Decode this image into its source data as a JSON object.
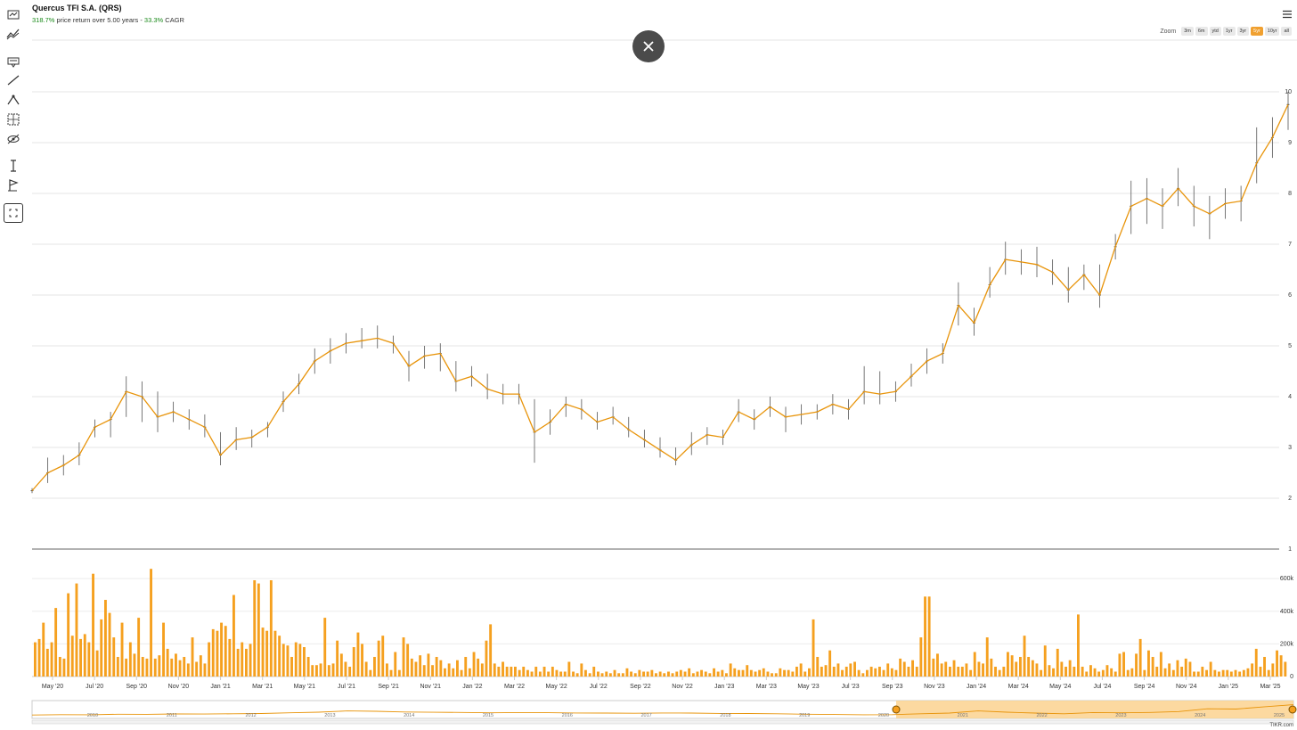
{
  "header": {
    "title": "Quercus TFI S.A. (QRS)",
    "return_pct": "318.7%",
    "return_text": " price return over 5.00 years - ",
    "cagr_pct": "33.3%",
    "cagr_text": " CAGR"
  },
  "toolbar": {
    "icons": [
      "indicators-icon",
      "compare-icon",
      "annotation-icon",
      "line-tool-icon",
      "path-tool-icon",
      "measure-tool-icon",
      "visibility-icon",
      "vertical-line-icon",
      "flag-icon",
      "fullscreen-icon"
    ]
  },
  "zoom": {
    "label": "Zoom",
    "options": [
      "3m",
      "6m",
      "ytd",
      "1yr",
      "3yr",
      "5yr",
      "10yr",
      "all"
    ],
    "selected": "5yr"
  },
  "colors": {
    "accent": "#f5a01f",
    "line": "#e8940a",
    "close_button": "#4b4b4b"
  },
  "chart_data": {
    "type": "line",
    "x_tick_labels": [
      "May '20",
      "Jul '20",
      "Sep '20",
      "Nov '20",
      "Jan '21",
      "Mar '21",
      "May '21",
      "Jul '21",
      "Sep '21",
      "Nov '21",
      "Jan '22",
      "Mar '22",
      "May '22",
      "Jul '22",
      "Sep '22",
      "Nov '22",
      "Jan '23",
      "Mar '23",
      "May '23",
      "Jul '23",
      "Sep '23",
      "Nov '23",
      "Jan '24",
      "Mar '24",
      "May '24",
      "Jul '24",
      "Sep '24",
      "Nov '24",
      "Jan '25",
      "Mar '25"
    ],
    "price": {
      "y_ticks": [
        1,
        2,
        3,
        4,
        5,
        6,
        7,
        8,
        9,
        10
      ],
      "ylim": [
        1,
        10
      ],
      "series": [
        2.15,
        2.5,
        2.65,
        2.85,
        3.4,
        3.55,
        4.1,
        4.0,
        3.6,
        3.7,
        3.55,
        3.4,
        2.85,
        3.15,
        3.2,
        3.4,
        3.9,
        4.25,
        4.7,
        4.9,
        5.05,
        5.1,
        5.15,
        5.05,
        4.6,
        4.8,
        4.85,
        4.3,
        4.4,
        4.15,
        4.05,
        4.05,
        3.3,
        3.5,
        3.85,
        3.75,
        3.5,
        3.6,
        3.35,
        3.15,
        2.95,
        2.75,
        3.05,
        3.25,
        3.2,
        3.7,
        3.55,
        3.8,
        3.6,
        3.65,
        3.7,
        3.85,
        3.75,
        4.1,
        4.05,
        4.1,
        4.4,
        4.7,
        4.85,
        5.8,
        5.45,
        6.2,
        6.7,
        6.65,
        6.6,
        6.45,
        6.1,
        6.4,
        6.0,
        6.95,
        7.75,
        7.9,
        7.75,
        8.1,
        7.75,
        7.6,
        7.8,
        7.85,
        8.6,
        9.1,
        9.75
      ],
      "high": [
        2.2,
        2.8,
        2.85,
        3.1,
        3.55,
        3.7,
        4.4,
        4.3,
        4.1,
        3.9,
        3.75,
        3.65,
        3.3,
        3.4,
        3.35,
        3.5,
        4.1,
        4.45,
        4.95,
        5.15,
        5.25,
        5.35,
        5.4,
        5.2,
        4.9,
        5.0,
        5.05,
        4.7,
        4.6,
        4.45,
        4.25,
        4.25,
        3.95,
        3.75,
        4.0,
        3.95,
        3.7,
        3.8,
        3.6,
        3.35,
        3.2,
        3.0,
        3.3,
        3.4,
        3.35,
        3.95,
        3.75,
        4.0,
        3.8,
        3.85,
        3.85,
        4.05,
        3.95,
        4.6,
        4.5,
        4.3,
        4.65,
        4.95,
        5.05,
        6.25,
        5.75,
        6.55,
        7.05,
        6.9,
        6.95,
        6.7,
        6.55,
        6.6,
        6.6,
        7.2,
        8.25,
        8.3,
        8.1,
        8.5,
        8.15,
        7.95,
        8.1,
        8.15,
        9.3,
        9.5,
        10.0
      ],
      "low": [
        2.1,
        2.3,
        2.45,
        2.65,
        3.2,
        3.2,
        3.6,
        3.5,
        3.3,
        3.5,
        3.35,
        3.2,
        2.65,
        2.95,
        3.0,
        3.2,
        3.7,
        4.05,
        4.45,
        4.65,
        4.85,
        4.95,
        4.95,
        4.85,
        4.3,
        4.55,
        4.5,
        4.1,
        4.2,
        3.95,
        3.85,
        3.85,
        2.7,
        3.25,
        3.6,
        3.55,
        3.35,
        3.45,
        3.2,
        3.0,
        2.8,
        2.65,
        2.85,
        3.05,
        3.05,
        3.5,
        3.35,
        3.6,
        3.3,
        3.45,
        3.55,
        3.65,
        3.55,
        3.85,
        3.85,
        3.9,
        4.2,
        4.45,
        4.65,
        5.4,
        5.2,
        5.95,
        6.4,
        6.4,
        6.35,
        6.2,
        5.85,
        6.1,
        5.75,
        6.7,
        7.2,
        7.4,
        7.3,
        7.75,
        7.35,
        7.1,
        7.5,
        7.45,
        8.2,
        8.7,
        9.25
      ]
    },
    "volume": {
      "y_ticks": [
        "0",
        "200k",
        "400k",
        "600k"
      ],
      "ylim": [
        0,
        650000
      ],
      "series": [
        210000,
        230000,
        330000,
        170000,
        210000,
        420000,
        120000,
        110000,
        510000,
        250000,
        570000,
        230000,
        260000,
        210000,
        630000,
        160000,
        350000,
        470000,
        390000,
        240000,
        120000,
        330000,
        110000,
        210000,
        140000,
        360000,
        120000,
        110000,
        660000,
        110000,
        130000,
        330000,
        170000,
        110000,
        140000,
        100000,
        120000,
        80000,
        240000,
        90000,
        130000,
        80000,
        210000,
        290000,
        280000,
        330000,
        310000,
        230000,
        500000,
        170000,
        210000,
        170000,
        200000,
        590000,
        570000,
        300000,
        280000,
        590000,
        280000,
        250000,
        200000,
        190000,
        120000,
        210000,
        200000,
        180000,
        120000,
        70000,
        70000,
        80000,
        360000,
        70000,
        80000,
        220000,
        140000,
        90000,
        60000,
        180000,
        270000,
        200000,
        90000,
        40000,
        120000,
        220000,
        250000,
        80000,
        40000,
        150000,
        40000,
        240000,
        200000,
        110000,
        90000,
        130000,
        70000,
        140000,
        70000,
        120000,
        100000,
        50000,
        80000,
        50000,
        100000,
        40000,
        120000,
        50000,
        150000,
        110000,
        80000,
        220000,
        320000,
        80000,
        60000,
        90000,
        60000,
        60000,
        60000,
        40000,
        60000,
        40000,
        30000,
        60000,
        30000,
        60000,
        30000,
        60000,
        40000,
        30000,
        30000,
        90000,
        30000,
        20000,
        80000,
        40000,
        20000,
        60000,
        30000,
        20000,
        30000,
        20000,
        40000,
        20000,
        20000,
        50000,
        30000,
        20000,
        40000,
        30000,
        30000,
        40000,
        20000,
        30000,
        20000,
        30000,
        20000,
        30000,
        40000,
        30000,
        50000,
        20000,
        30000,
        40000,
        30000,
        20000,
        50000,
        30000,
        40000,
        20000,
        80000,
        50000,
        40000,
        40000,
        70000,
        40000,
        30000,
        40000,
        50000,
        30000,
        20000,
        20000,
        50000,
        40000,
        40000,
        30000,
        60000,
        80000,
        30000,
        50000,
        350000,
        120000,
        60000,
        70000,
        160000,
        60000,
        80000,
        40000,
        60000,
        80000,
        90000,
        40000,
        20000,
        40000,
        60000,
        50000,
        60000,
        40000,
        80000,
        50000,
        40000,
        110000,
        90000,
        60000,
        100000,
        60000,
        240000,
        490000,
        490000,
        110000,
        140000,
        80000,
        90000,
        60000,
        100000,
        60000,
        60000,
        80000,
        40000,
        150000,
        90000,
        80000,
        240000,
        110000,
        60000,
        40000,
        60000,
        150000,
        130000,
        90000,
        120000,
        250000,
        120000,
        100000,
        80000,
        40000,
        190000,
        70000,
        50000,
        170000,
        90000,
        60000,
        100000,
        60000,
        380000,
        60000,
        30000,
        70000,
        50000,
        30000,
        40000,
        70000,
        50000,
        30000,
        140000,
        150000,
        40000,
        50000,
        140000,
        230000,
        40000,
        160000,
        120000,
        60000,
        150000,
        50000,
        80000,
        40000,
        100000,
        60000,
        110000,
        90000,
        30000,
        30000,
        60000,
        40000,
        90000,
        40000,
        30000,
        40000,
        40000,
        30000,
        40000,
        30000,
        40000,
        50000,
        80000,
        170000,
        60000,
        120000,
        40000,
        80000,
        160000,
        130000,
        90000
      ]
    },
    "navigator": {
      "years": [
        "2010",
        "2011",
        "2012",
        "2013",
        "2014",
        "2015",
        "2016",
        "2017",
        "2018",
        "2019",
        "2020",
        "2021",
        "2022",
        "2023",
        "2024",
        "2025"
      ],
      "series": [
        2.0,
        2.3,
        2.2,
        2.6,
        2.5,
        2.8,
        2.7,
        2.9,
        3.1,
        3.6,
        4.1,
        5.0,
        4.7,
        4.2,
        4.0,
        3.9,
        3.6,
        3.8,
        3.7,
        3.5,
        3.4,
        3.3,
        3.5,
        3.4,
        3.2,
        3.1,
        2.9,
        2.6,
        2.4,
        2.2,
        2.3,
        2.9,
        3.4,
        5.0,
        4.1,
        3.4,
        2.9,
        3.8,
        3.6,
        3.9,
        4.5,
        6.5,
        6.3,
        8.0,
        9.5
      ],
      "selected_range": [
        "2020",
        "2025"
      ]
    }
  },
  "footer": {
    "brand": "TIKR.com"
  }
}
